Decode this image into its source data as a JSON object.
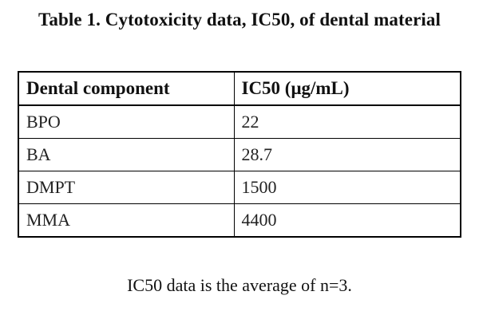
{
  "title": "Table 1. Cytotoxicity data, IC50, of dental material",
  "table": {
    "headers": [
      "Dental component",
      "IC50 (μg/mL)"
    ],
    "rows": [
      [
        "BPO",
        "22"
      ],
      [
        "BA",
        "28.7"
      ],
      [
        "DMPT",
        "1500"
      ],
      [
        "MMA",
        "4400"
      ]
    ]
  },
  "footnote": "IC50 data is the average of n=3."
}
